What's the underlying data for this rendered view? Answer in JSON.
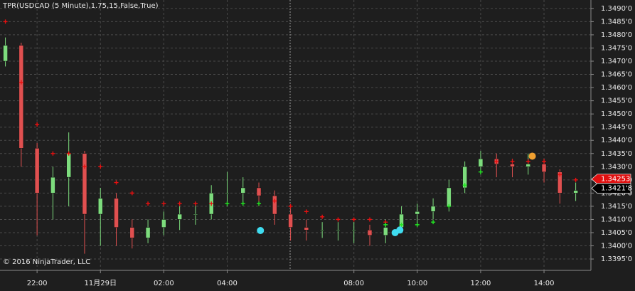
{
  "chart_data": {
    "type": "candlestick",
    "title": "TPR(USDCAD (5 Minute),1.75,15,False,True)",
    "copyright": "© 2016 NinjaTrader, LLC",
    "x": [
      21.0,
      21.5,
      22.0,
      22.5,
      23.0,
      23.5,
      24.0,
      24.5,
      25.0,
      25.5,
      26.0,
      26.5,
      27.0,
      27.5,
      28.0,
      28.5,
      29.0,
      29.5,
      30.0,
      30.5,
      31.0,
      31.5,
      32.0,
      32.5,
      33.0,
      33.5,
      34.0,
      34.5,
      35.0,
      35.5,
      36.0,
      36.5,
      37.0,
      37.5,
      38.0,
      38.5,
      39.0
    ],
    "open": [
      1.347,
      1.3476,
      1.3437,
      1.342,
      1.3426,
      1.3435,
      1.3412,
      1.3418,
      1.3407,
      1.3403,
      1.3407,
      1.341,
      1.3412,
      1.3412,
      1.342,
      1.342,
      1.3422,
      1.3419,
      1.3412,
      1.3407,
      1.3406,
      1.3406,
      1.3406,
      1.3406,
      1.3404,
      1.3407,
      1.3412,
      1.3413,
      1.3415,
      1.3422,
      1.343,
      1.3433,
      1.3431,
      1.343,
      1.3431,
      1.3428,
      1.342
    ],
    "high": [
      1.3479,
      1.3477,
      1.3439,
      1.343,
      1.3443,
      1.3436,
      1.3422,
      1.342,
      1.341,
      1.341,
      1.3413,
      1.3415,
      1.3416,
      1.3423,
      1.3428,
      1.3426,
      1.3424,
      1.3421,
      1.3414,
      1.341,
      1.3409,
      1.3409,
      1.3409,
      1.3408,
      1.341,
      1.3415,
      1.3416,
      1.3418,
      1.3425,
      1.3432,
      1.3436,
      1.3435,
      1.3433,
      1.3435,
      1.3433,
      1.3429,
      1.3424
    ],
    "low": [
      1.3468,
      1.343,
      1.3404,
      1.341,
      1.3415,
      1.3397,
      1.34,
      1.34,
      1.3399,
      1.3401,
      1.3404,
      1.3406,
      1.3408,
      1.341,
      1.3415,
      1.3416,
      1.3415,
      1.3408,
      1.3402,
      1.3402,
      1.3403,
      1.3402,
      1.3401,
      1.34,
      1.3401,
      1.3405,
      1.3408,
      1.341,
      1.3413,
      1.342,
      1.3427,
      1.3426,
      1.3426,
      1.3427,
      1.3424,
      1.3416,
      1.3417
    ],
    "close": [
      1.3476,
      1.3437,
      1.342,
      1.3426,
      1.3435,
      1.3412,
      1.3418,
      1.3407,
      1.3403,
      1.3407,
      1.341,
      1.3412,
      1.3412,
      1.342,
      1.342,
      1.3422,
      1.3419,
      1.3412,
      1.3407,
      1.3406,
      1.3406,
      1.3406,
      1.3406,
      1.3404,
      1.3407,
      1.3412,
      1.3413,
      1.3415,
      1.3422,
      1.343,
      1.3433,
      1.3431,
      1.343,
      1.3431,
      1.3428,
      1.342,
      1.3421
    ],
    "up_color": "#7ddc7d",
    "down_color": "#e05050",
    "stop_short": {
      "color": "#e81010",
      "values": [
        1.3485,
        1.3462,
        1.3446,
        1.3435,
        1.3435,
        1.343,
        1.343,
        1.3424,
        1.342,
        1.3416,
        1.3416,
        1.3416,
        1.3416,
        1.3416,
        null,
        null,
        null,
        1.3417,
        1.3415,
        1.3413,
        1.3411,
        1.341,
        1.341,
        1.341,
        1.3409,
        null,
        null,
        null,
        null,
        null,
        null,
        1.3432,
        1.3432,
        1.3432,
        1.3432,
        1.3427,
        1.3425
      ]
    },
    "stop_long": {
      "color": "#22e622",
      "values": [
        null,
        null,
        null,
        null,
        null,
        null,
        null,
        null,
        null,
        null,
        null,
        null,
        null,
        null,
        1.3416,
        1.3416,
        1.3416,
        null,
        null,
        null,
        null,
        null,
        null,
        null,
        1.3408,
        1.3408,
        1.3408,
        1.3409,
        1.3415,
        1.3423,
        1.3428,
        null,
        null,
        null,
        null,
        null,
        null
      ]
    },
    "signals": [
      {
        "color": "#3fdcf0",
        "x": [
          29.05,
          33.3,
          33.45
        ],
        "values": [
          1.34058,
          1.3405,
          1.3406
        ]
      },
      {
        "color": "#f0a030",
        "x": [
          37.63
        ],
        "values": [
          1.3434
        ]
      }
    ],
    "price_tags": [
      {
        "label": "1.34253",
        "value": 1.34253,
        "color": "#e01010"
      },
      {
        "label": "1.3421'8",
        "value": 1.34218,
        "color": "#000000"
      }
    ],
    "xlim": [
      20.83,
      39.48
    ],
    "ylim": [
      1.33907,
      1.34932
    ],
    "xticks": [
      {
        "value": 22,
        "label": "22:00"
      },
      {
        "value": 24,
        "label": "11月29日"
      },
      {
        "value": 26,
        "label": "02:00"
      },
      {
        "value": 28,
        "label": "04:00"
      },
      {
        "value": 32,
        "label": "08:00"
      },
      {
        "value": 34,
        "label": "10:00"
      },
      {
        "value": 36,
        "label": "12:00"
      },
      {
        "value": 38,
        "label": "14:00"
      }
    ],
    "yticks": [
      {
        "value": 1.3395,
        "label": "1.3395'0"
      },
      {
        "value": 1.34,
        "label": "1.3400'0"
      },
      {
        "value": 1.3405,
        "label": "1.3405'0"
      },
      {
        "value": 1.341,
        "label": "1.3410'0"
      },
      {
        "value": 1.3415,
        "label": "1.3415'0"
      },
      {
        "value": 1.342,
        "label": "1.3420'0"
      },
      {
        "value": 1.3425,
        "label": "1.3425'0"
      },
      {
        "value": 1.343,
        "label": "1.3430'0"
      },
      {
        "value": 1.3435,
        "label": "1.3435'0"
      },
      {
        "value": 1.344,
        "label": "1.3440'0"
      },
      {
        "value": 1.3445,
        "label": "1.3445'0"
      },
      {
        "value": 1.345,
        "label": "1.3450'0"
      },
      {
        "value": 1.3455,
        "label": "1.3455'0"
      },
      {
        "value": 1.346,
        "label": "1.3460'0"
      },
      {
        "value": 1.3465,
        "label": "1.3465'0"
      },
      {
        "value": 1.347,
        "label": "1.3470'0"
      },
      {
        "value": 1.3475,
        "label": "1.3475'0"
      },
      {
        "value": 1.348,
        "label": "1.3480'0"
      },
      {
        "value": 1.3485,
        "label": "1.3485'0"
      },
      {
        "value": 1.349,
        "label": "1.3490'0"
      }
    ],
    "grid": true
  }
}
